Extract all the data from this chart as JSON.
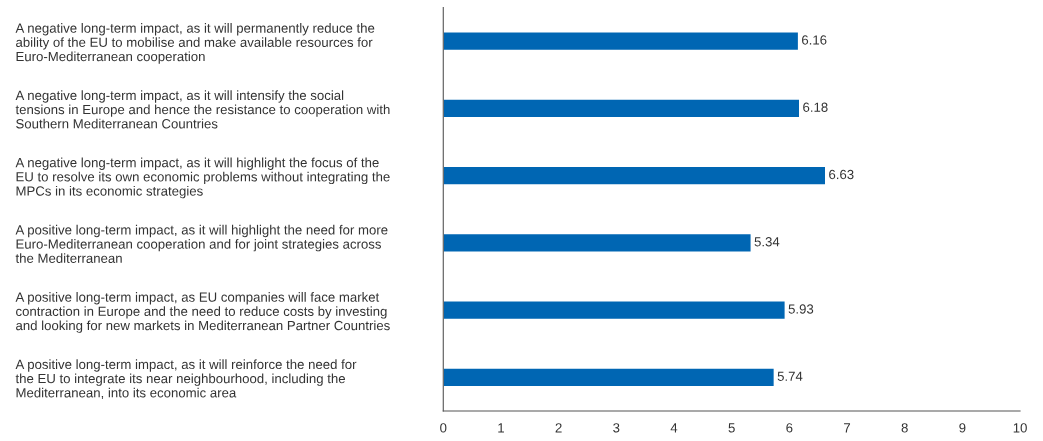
{
  "chart_data": {
    "type": "bar",
    "orientation": "horizontal",
    "categories": [
      "A negative long-term impact, as it will permanently reduce the\nability of the EU to mobilise and make available resources for\nEuro-Mediterranean cooperation",
      "A negative long-term impact, as it will intensify the social\ntensions in Europe and hence the resistance to cooperation with\nSouthern Mediterranean Countries",
      "A negative long-term impact, as it will highlight the focus of the\nEU to resolve its own economic problems without integrating the\nMPCs in its economic strategies",
      "A positive long-term impact, as it will highlight the need for more\nEuro-Mediterranean cooperation and for joint strategies across\nthe Mediterranean",
      "A positive long-term impact, as EU companies will face market\ncontraction in Europe and the need to reduce costs by investing\nand looking for new markets in Mediterranean Partner Countries",
      "A positive long-term impact, as it will reinforce the need for\nthe EU to integrate its near neighbourhood, including the\nMediterranean, into its economic area"
    ],
    "values": [
      6.16,
      6.18,
      6.63,
      5.34,
      5.93,
      5.74
    ],
    "color": "#0066b3",
    "xlim": [
      0,
      10
    ],
    "xticks": [
      0,
      1,
      2,
      3,
      4,
      5,
      6,
      7,
      8,
      9,
      10
    ],
    "data_labels": true,
    "grid": false,
    "legend": false
  }
}
